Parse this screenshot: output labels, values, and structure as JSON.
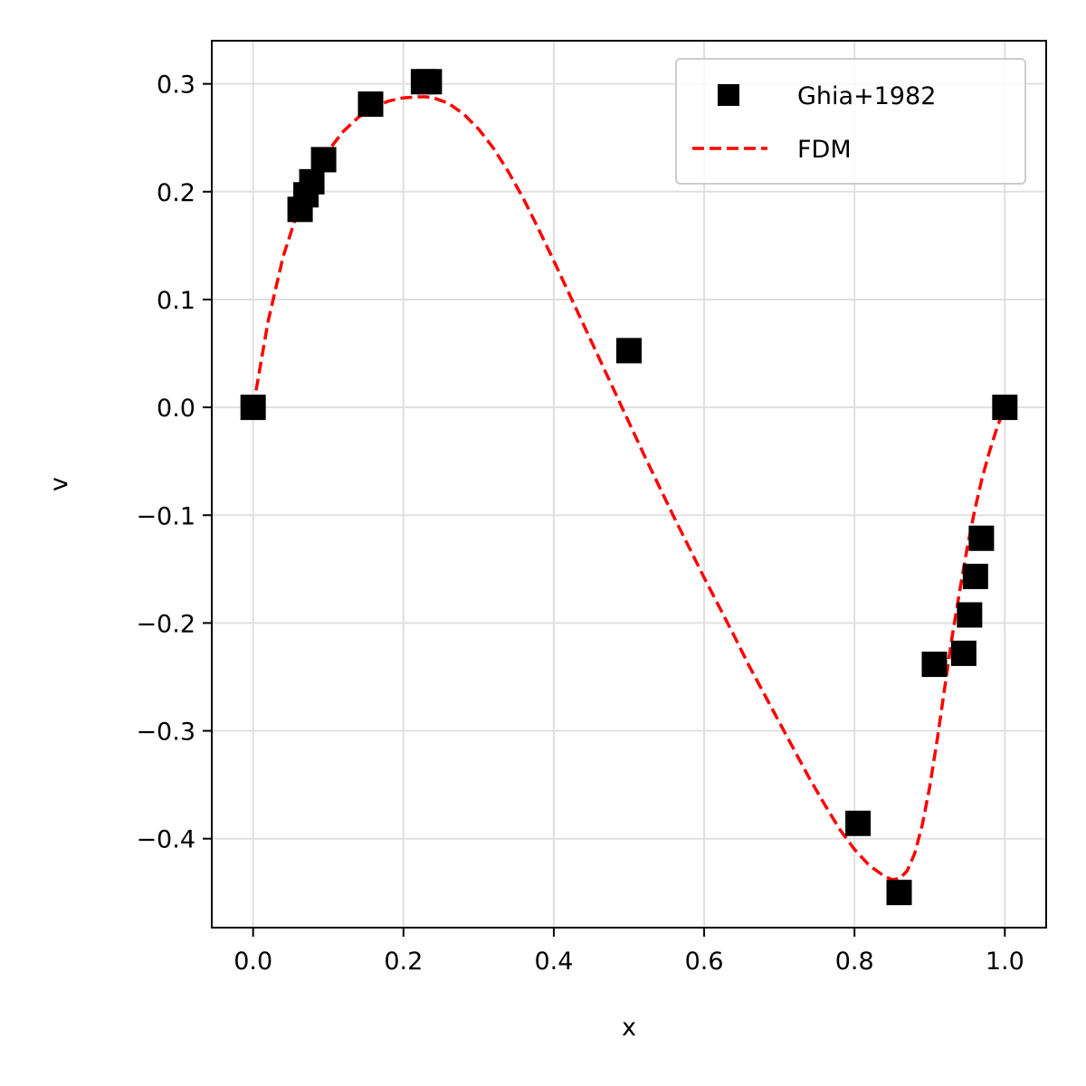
{
  "chart_data": {
    "type": "scatter",
    "xlabel": "x",
    "ylabel": "v",
    "xlim": [
      -0.055,
      1.055
    ],
    "ylim": [
      -0.4825,
      0.34
    ],
    "grid": true,
    "legend_position": "top-right",
    "x_ticks": [
      0.0,
      0.2,
      0.4,
      0.6,
      0.8,
      1.0
    ],
    "x_tick_labels": [
      "0.0",
      "0.2",
      "0.4",
      "0.6",
      "0.8",
      "1.0"
    ],
    "y_ticks": [
      0.3,
      0.2,
      0.1,
      0.0,
      -0.1,
      -0.2,
      -0.3,
      -0.4
    ],
    "y_tick_labels": [
      "0.3",
      "0.2",
      "0.1",
      "0.0",
      "−0.1",
      "−0.2",
      "−0.3",
      "−0.4"
    ],
    "series": [
      {
        "name": "Ghia+1982",
        "kind": "scatter",
        "marker": "square",
        "color": "#000000",
        "x": [
          0.0,
          0.0625,
          0.0703,
          0.0781,
          0.0938,
          0.1563,
          0.2266,
          0.2344,
          0.5,
          0.8047,
          0.8594,
          0.9063,
          0.9453,
          0.9531,
          0.9609,
          0.9688,
          1.0
        ],
        "y": [
          0.0,
          0.1836,
          0.1971,
          0.2092,
          0.2297,
          0.2812,
          0.302,
          0.302,
          0.0526,
          -0.3858,
          -0.4499,
          -0.2383,
          -0.2281,
          -0.1925,
          -0.1568,
          -0.1214,
          0.0
        ]
      },
      {
        "name": "FDM",
        "kind": "line",
        "style": "dashed",
        "color": "#ff0000",
        "x": [
          0.0,
          0.02,
          0.04,
          0.06,
          0.08,
          0.1,
          0.12,
          0.14,
          0.16,
          0.18,
          0.2,
          0.22,
          0.23,
          0.24,
          0.26,
          0.28,
          0.3,
          0.32,
          0.34,
          0.36,
          0.38,
          0.4,
          0.42,
          0.44,
          0.46,
          0.48,
          0.5,
          0.52,
          0.54,
          0.56,
          0.58,
          0.6,
          0.62,
          0.64,
          0.66,
          0.68,
          0.7,
          0.72,
          0.74,
          0.76,
          0.78,
          0.8,
          0.82,
          0.84,
          0.85,
          0.86,
          0.87,
          0.88,
          0.89,
          0.9,
          0.91,
          0.92,
          0.93,
          0.94,
          0.95,
          0.96,
          0.97,
          0.98,
          0.99,
          1.0
        ],
        "y": [
          0.0,
          0.08,
          0.14,
          0.183,
          0.215,
          0.238,
          0.256,
          0.269,
          0.278,
          0.284,
          0.287,
          0.288,
          0.288,
          0.287,
          0.282,
          0.272,
          0.258,
          0.24,
          0.218,
          0.193,
          0.165,
          0.136,
          0.106,
          0.076,
          0.046,
          0.016,
          -0.014,
          -0.044,
          -0.073,
          -0.102,
          -0.13,
          -0.158,
          -0.185,
          -0.212,
          -0.24,
          -0.266,
          -0.292,
          -0.318,
          -0.344,
          -0.368,
          -0.391,
          -0.41,
          -0.425,
          -0.435,
          -0.438,
          -0.437,
          -0.43,
          -0.414,
          -0.388,
          -0.352,
          -0.308,
          -0.26,
          -0.212,
          -0.17,
          -0.13,
          -0.095,
          -0.065,
          -0.04,
          -0.018,
          0.0
        ]
      }
    ]
  }
}
